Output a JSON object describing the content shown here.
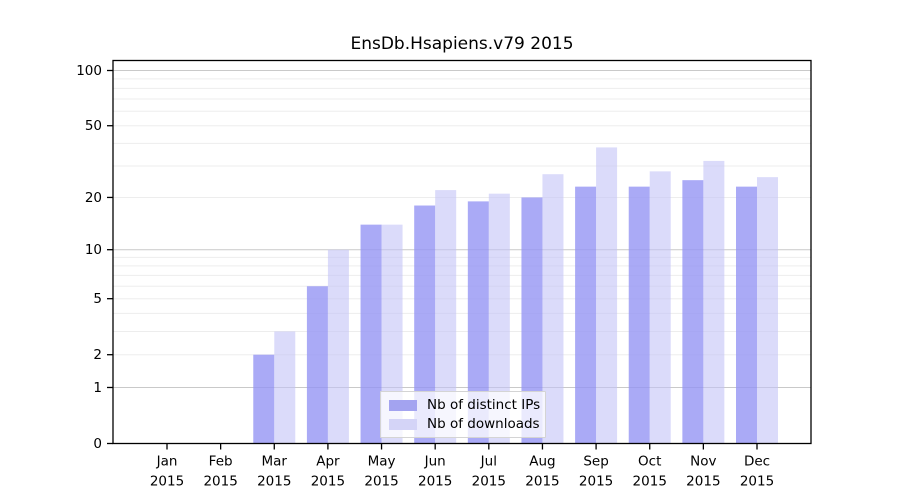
{
  "chart_data": {
    "type": "bar",
    "title": "EnsDb.Hsapiens.v79 2015",
    "xlabel": "",
    "ylabel": "",
    "year_label": "2015",
    "categories": [
      "Jan",
      "Feb",
      "Mar",
      "Apr",
      "May",
      "Jun",
      "Jul",
      "Aug",
      "Sep",
      "Oct",
      "Nov",
      "Dec"
    ],
    "series": [
      {
        "name": "Nb of distinct IPs",
        "color": "rgba(149,149,244,0.8)",
        "swatch_color": "#a3a3f0",
        "values": [
          0,
          0,
          2,
          6,
          14,
          18,
          19,
          20,
          23,
          23,
          25,
          23
        ]
      },
      {
        "name": "Nb of downloads",
        "color": "rgba(195,195,247,0.6)",
        "swatch_color": "#d4d4f7",
        "values": [
          0,
          0,
          3,
          10,
          14,
          22,
          21,
          27,
          38,
          28,
          32,
          26
        ]
      }
    ],
    "y_axis": {
      "scale": "log10(1+x)",
      "tick_labels": [
        "0",
        "1",
        "2",
        "5",
        "10",
        "20",
        "50",
        "100"
      ],
      "tick_values": [
        0,
        1,
        2,
        5,
        10,
        20,
        50,
        100
      ],
      "major_gridlines": [
        1,
        10,
        100
      ],
      "minor_gridlines": [
        2,
        3,
        4,
        5,
        6,
        7,
        8,
        9,
        20,
        30,
        40,
        50,
        60,
        70,
        80,
        90
      ],
      "ylim": [
        0,
        100
      ]
    },
    "legend": {
      "position": "bottom-center",
      "entries": [
        "Nb of distinct IPs",
        "Nb of downloads"
      ]
    },
    "colors": {
      "axis": "#000000",
      "major_grid": "#c9c9c9",
      "minor_grid": "#ededed",
      "text": "#000000",
      "background": "#ffffff"
    }
  }
}
